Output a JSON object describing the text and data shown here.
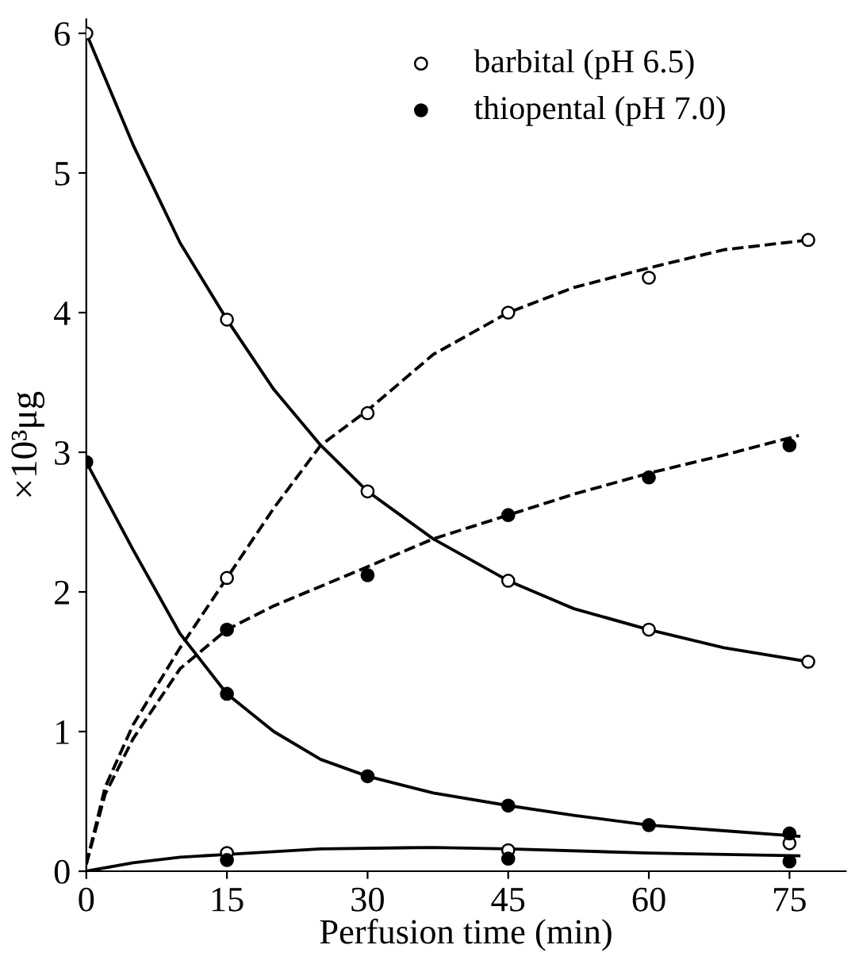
{
  "chart_data": {
    "type": "line",
    "xlabel": "Perfusion time (min)",
    "ylabel": "×10³μg",
    "xlim": [
      0,
      81
    ],
    "ylim": [
      0,
      6.1
    ],
    "xticks": [
      0,
      15,
      30,
      45,
      60,
      75
    ],
    "yticks": [
      0,
      1,
      2,
      3,
      4,
      5,
      6
    ],
    "grid": false,
    "legend": "top",
    "series": [
      {
        "name": "barbital (pH 6.5)",
        "type": "scatter",
        "marker": "circle",
        "color": "#ffffff",
        "x": [
          0,
          15,
          30,
          45,
          60,
          77,
          15,
          30,
          45,
          60,
          77,
          15,
          45,
          75
        ],
        "values": [
          6.0,
          3.95,
          2.72,
          2.08,
          1.73,
          1.5,
          2.1,
          3.28,
          4.0,
          4.25,
          4.52,
          0.13,
          0.15,
          0.2
        ]
      },
      {
        "name": "thiopental (pH 7.0)",
        "type": "scatter",
        "marker": "circle",
        "color": "#000000",
        "x": [
          0,
          15,
          30,
          45,
          60,
          75,
          15,
          30,
          45,
          60,
          75,
          15,
          45,
          75
        ],
        "values": [
          2.93,
          1.27,
          0.68,
          0.47,
          0.33,
          0.27,
          1.73,
          2.12,
          2.55,
          2.82,
          3.05,
          0.08,
          0.09,
          0.07
        ]
      },
      {
        "line_style": "solid",
        "color": "#000000",
        "x": [
          0,
          5,
          10,
          15,
          20,
          25,
          30,
          37,
          45,
          52,
          60,
          68,
          77
        ],
        "values": [
          6.0,
          5.2,
          4.5,
          3.95,
          3.45,
          3.05,
          2.72,
          2.38,
          2.08,
          1.88,
          1.73,
          1.6,
          1.5
        ]
      },
      {
        "line_style": "dashed",
        "color": "#000000",
        "x": [
          0,
          2,
          5,
          10,
          15,
          20,
          25,
          30,
          37,
          45,
          52,
          60,
          68,
          77
        ],
        "values": [
          0.05,
          0.6,
          1.05,
          1.6,
          2.1,
          2.6,
          3.05,
          3.3,
          3.7,
          4.0,
          4.18,
          4.32,
          4.45,
          4.52
        ]
      },
      {
        "line_style": "solid",
        "color": "#000000",
        "x": [
          0,
          5,
          10,
          15,
          20,
          25,
          30,
          37,
          45,
          52,
          60,
          68,
          76
        ],
        "values": [
          2.93,
          2.3,
          1.7,
          1.27,
          1.0,
          0.8,
          0.68,
          0.56,
          0.47,
          0.4,
          0.33,
          0.29,
          0.25
        ]
      },
      {
        "line_style": "dashed",
        "color": "#000000",
        "x": [
          0,
          2,
          5,
          10,
          15,
          20,
          30,
          37,
          45,
          52,
          60,
          68,
          76
        ],
        "values": [
          0.05,
          0.55,
          0.95,
          1.45,
          1.73,
          1.9,
          2.18,
          2.38,
          2.55,
          2.7,
          2.85,
          2.98,
          3.12
        ]
      },
      {
        "line_style": "solid",
        "color": "#000000",
        "x": [
          0,
          5,
          10,
          15,
          25,
          37,
          45,
          60,
          76
        ],
        "values": [
          0,
          0.06,
          0.1,
          0.12,
          0.16,
          0.17,
          0.16,
          0.13,
          0.11
        ]
      }
    ]
  }
}
